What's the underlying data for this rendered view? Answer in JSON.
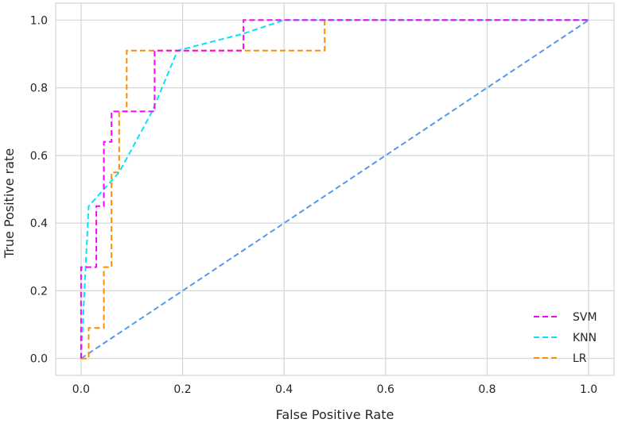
{
  "chart_data": {
    "type": "line",
    "title": "",
    "xlabel": "False Positive Rate",
    "ylabel": "True Positive rate",
    "xlim": [
      -0.05,
      1.05
    ],
    "ylim": [
      -0.05,
      1.05
    ],
    "xticks": [
      "0.0",
      "0.2",
      "0.4",
      "0.6",
      "0.8",
      "1.0"
    ],
    "yticks": [
      "0.0",
      "0.2",
      "0.4",
      "0.6",
      "0.8",
      "1.0"
    ],
    "grid": true,
    "legend_position": "bottom-right",
    "line_style": "dashed",
    "series": [
      {
        "name": "SVM",
        "color": "#ff00ff",
        "x": [
          0.0,
          0.0,
          0.0,
          0.03,
          0.03,
          0.045,
          0.045,
          0.06,
          0.06,
          0.075,
          0.075,
          0.145,
          0.145,
          0.32,
          0.32,
          1.0
        ],
        "y": [
          0.0,
          0.27,
          0.27,
          0.27,
          0.45,
          0.45,
          0.64,
          0.64,
          0.73,
          0.73,
          0.73,
          0.73,
          0.91,
          0.91,
          1.0,
          1.0
        ]
      },
      {
        "name": "KNN",
        "color": "#00e5ff",
        "x": [
          0.0,
          0.015,
          0.045,
          0.075,
          0.14,
          0.19,
          0.32,
          0.4,
          1.0
        ],
        "y": [
          0.0,
          0.45,
          0.5,
          0.55,
          0.73,
          0.91,
          0.96,
          1.0,
          1.0
        ]
      },
      {
        "name": "LR",
        "color": "#ff8c00",
        "x": [
          0.0,
          0.015,
          0.015,
          0.045,
          0.045,
          0.06,
          0.06,
          0.075,
          0.075,
          0.09,
          0.09,
          0.48,
          0.48,
          1.0
        ],
        "y": [
          0.0,
          0.0,
          0.09,
          0.09,
          0.27,
          0.27,
          0.55,
          0.55,
          0.73,
          0.73,
          0.91,
          0.91,
          1.0,
          1.0
        ]
      }
    ],
    "reference_line": {
      "color": "#5599e8",
      "x": [
        0.0,
        1.0
      ],
      "y": [
        0.0,
        1.0
      ]
    }
  }
}
